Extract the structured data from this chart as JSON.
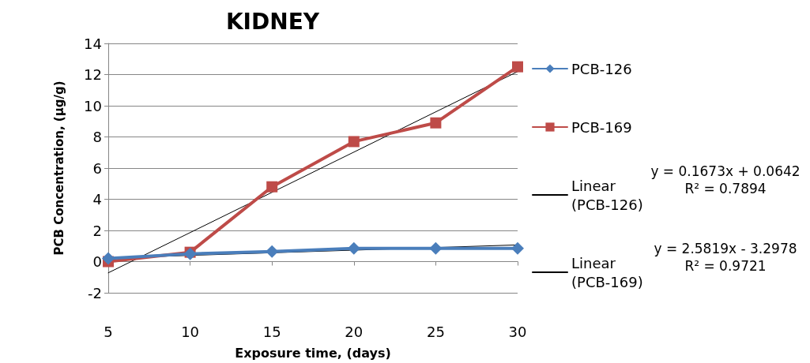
{
  "chart_data": {
    "type": "line",
    "title": "KIDNEY",
    "xlabel": "Exposure time, (days)",
    "ylabel": "PCB Concentration, (µg/g)",
    "categories": [
      "5",
      "10",
      "15",
      "20",
      "25",
      "30"
    ],
    "series": [
      {
        "name": "PCB-126",
        "color": "#4a7ebb",
        "marker": "diamond",
        "values": [
          0.2,
          0.5,
          0.65,
          0.85,
          0.85,
          0.85
        ]
      },
      {
        "name": "PCB-169",
        "color": "#be4b48",
        "marker": "square",
        "values": [
          0,
          0.6,
          4.8,
          7.7,
          8.9,
          12.5
        ]
      },
      {
        "name": "Linear (PCB-126)",
        "color": "#000000",
        "marker": "none",
        "x": [
          "5",
          "30"
        ],
        "values": [
          0.23,
          1.07
        ]
      },
      {
        "name": "Linear (PCB-169)",
        "color": "#000000",
        "marker": "none",
        "x": [
          "5",
          "30"
        ],
        "values": [
          -0.72,
          12.19
        ]
      }
    ],
    "annotations": [
      "y = 0.1673x + 0.0642\nR² = 0.7894",
      "y = 2.5819x - 3.2978\nR² = 0.9721"
    ],
    "ylim": [
      -2,
      14
    ],
    "yticks": [
      -2,
      0,
      2,
      4,
      6,
      8,
      10,
      12,
      14
    ],
    "grid": "y",
    "legend": "right",
    "line_style": "solid"
  }
}
